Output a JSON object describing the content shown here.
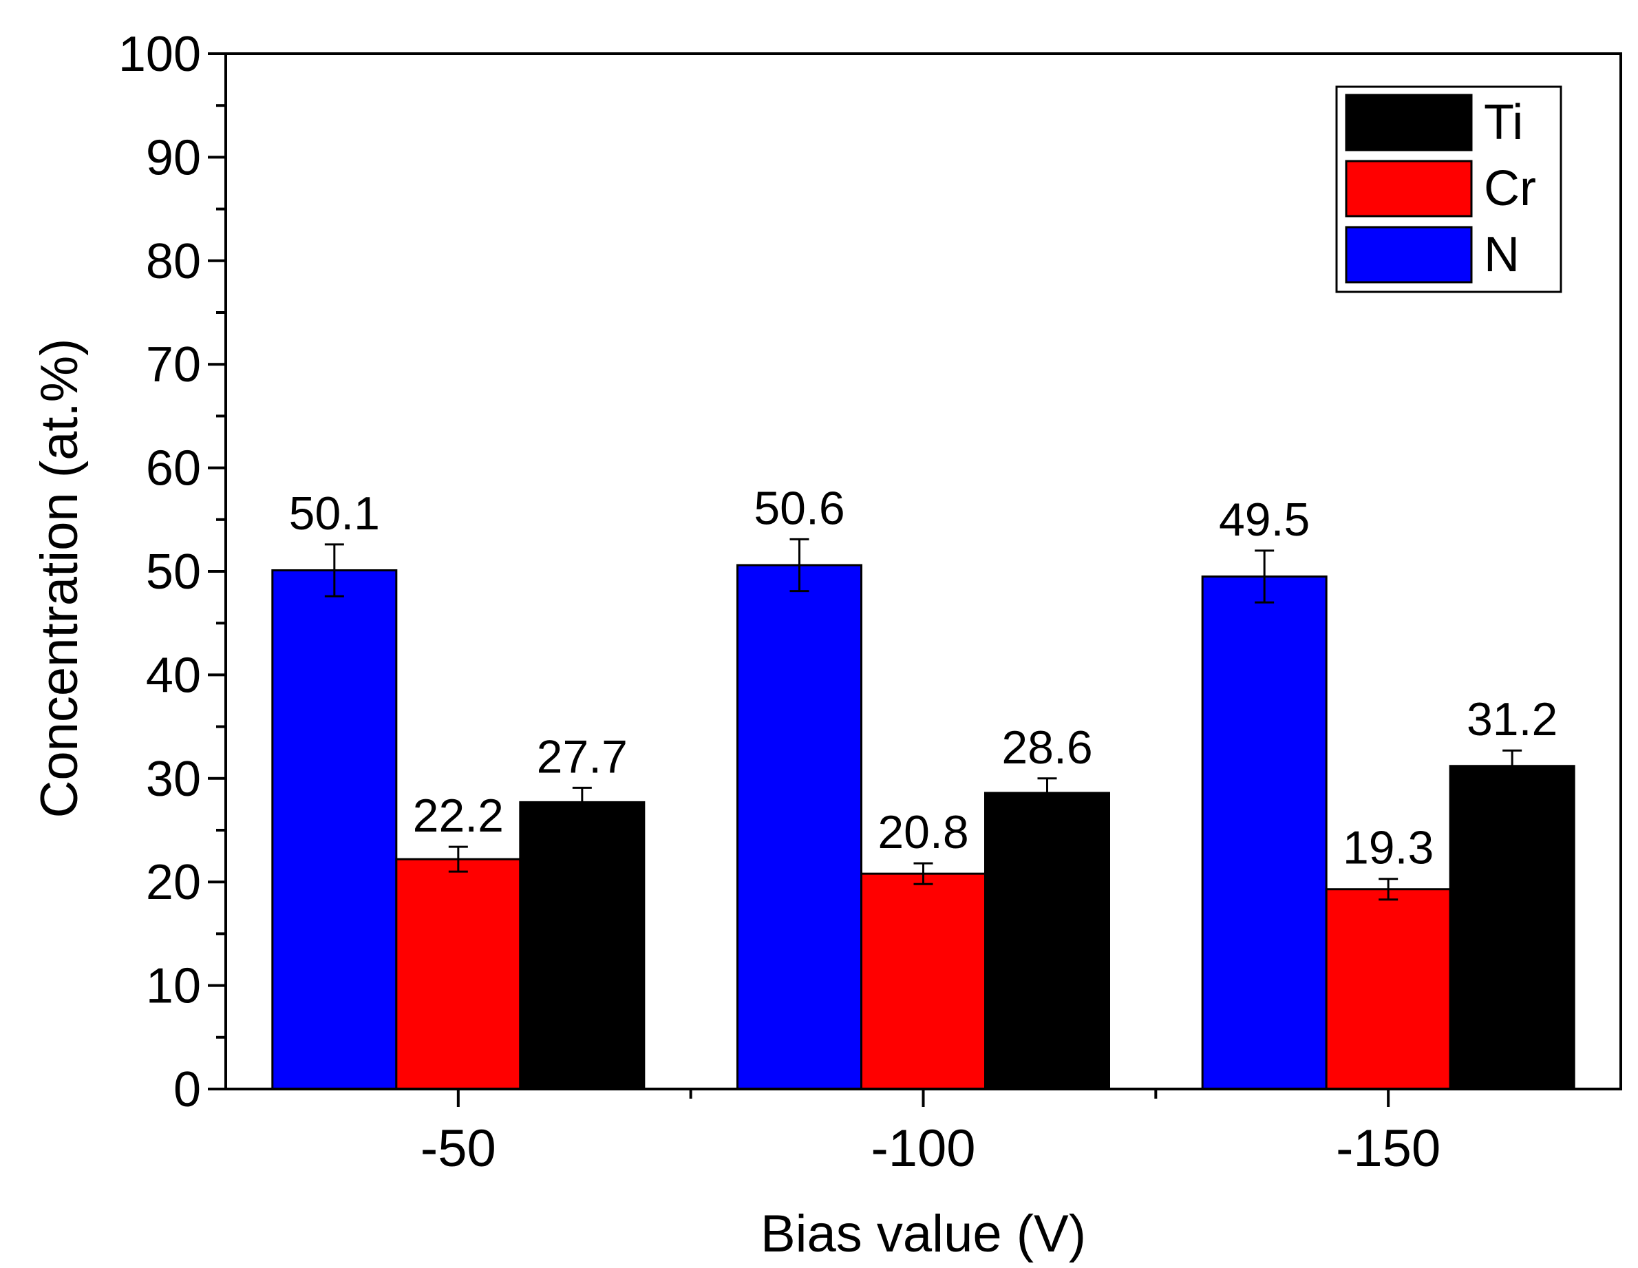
{
  "chart_data": {
    "type": "bar",
    "title": "",
    "xlabel": "Bias value (V)",
    "ylabel": "Concentration (at.%)",
    "categories": [
      "-50",
      "-100",
      "-150"
    ],
    "ylim": [
      0,
      100
    ],
    "yticks": [
      0,
      10,
      20,
      30,
      40,
      50,
      60,
      70,
      80,
      90,
      100
    ],
    "grid": false,
    "legend_position": "top-right",
    "legend_entries": [
      "Ti",
      "Cr",
      "N"
    ],
    "bar_order": [
      "N",
      "Cr",
      "Ti"
    ],
    "series": [
      {
        "name": "N",
        "color": "#0000ff",
        "values": [
          50.1,
          50.6,
          49.5
        ],
        "errors": [
          2.5,
          2.5,
          2.5
        ],
        "labels": [
          "50.1",
          "50.6",
          "49.5"
        ]
      },
      {
        "name": "Cr",
        "color": "#ff0000",
        "values": [
          22.2,
          20.8,
          19.3
        ],
        "errors": [
          1.2,
          1.0,
          1.0
        ],
        "labels": [
          "22.2",
          "20.8",
          "19.3"
        ]
      },
      {
        "name": "Ti",
        "color": "#000000",
        "values": [
          27.7,
          28.6,
          31.2
        ],
        "errors": [
          1.4,
          1.4,
          1.5
        ],
        "labels": [
          "27.7",
          "28.6",
          "31.2"
        ]
      }
    ]
  }
}
